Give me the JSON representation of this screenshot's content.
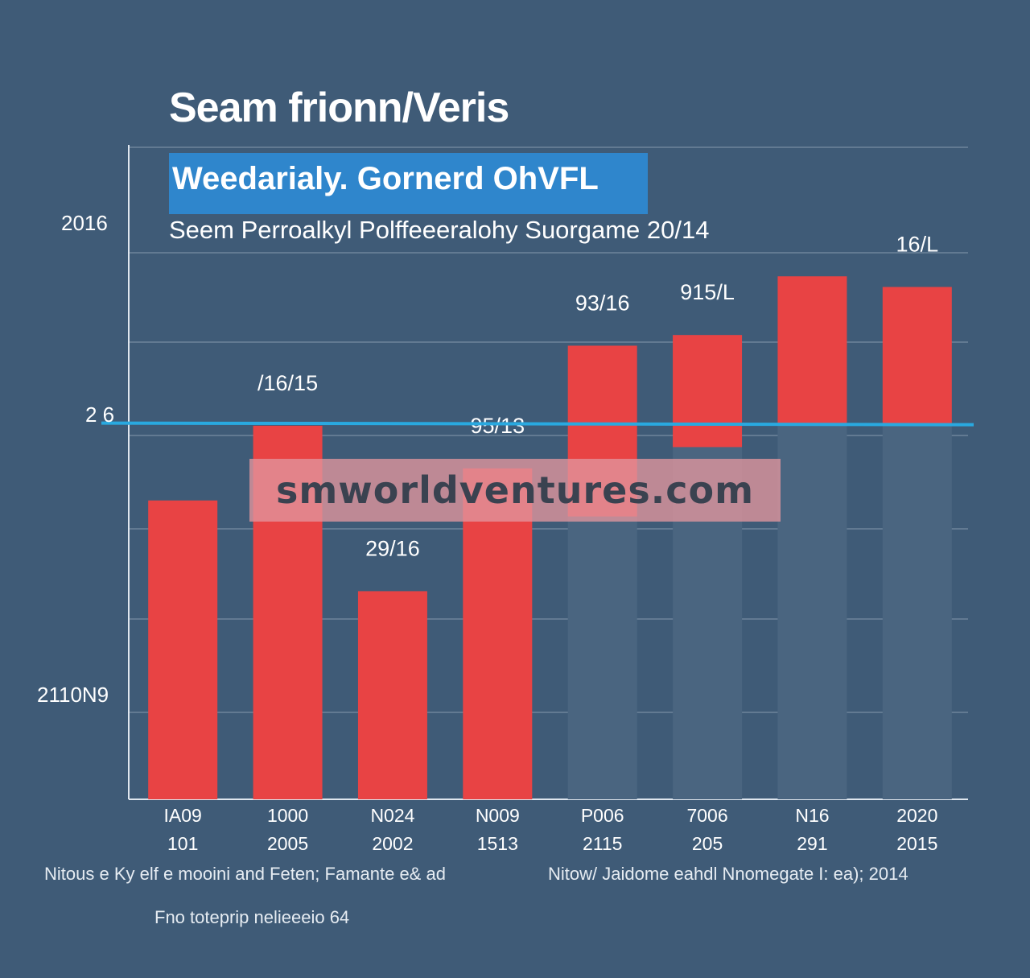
{
  "chart_data": {
    "type": "bar",
    "title": "Seam frionn/Veris",
    "subtitle": "Weedarialy. Gornerd OhVFL",
    "caption": "Seem Perroalkyl Polffeeeralohy Suorgame 20/14",
    "y_ticks": [
      "2016",
      "2 6",
      "2110N9"
    ],
    "ylim": [
      0,
      100
    ],
    "categories": [
      [
        "IA09",
        "101"
      ],
      [
        "1000",
        "2005"
      ],
      [
        "N024",
        "2002"
      ],
      [
        "N009",
        "1513"
      ],
      [
        "P006",
        "2115"
      ],
      [
        "7006",
        "205"
      ],
      [
        "N16",
        "291"
      ],
      [
        "2020",
        "2015"
      ]
    ],
    "bars": [
      {
        "low": 0,
        "high": 56
      },
      {
        "low": 0,
        "high": 70
      },
      {
        "low": 0,
        "high": 39
      },
      {
        "low": 0,
        "high": 62
      },
      {
        "low": 53,
        "high": 85
      },
      {
        "low": 66,
        "high": 87
      },
      {
        "low": 70,
        "high": 98
      },
      {
        "low": 70,
        "high": 96
      }
    ],
    "shadow_bars": [
      {
        "low": 0,
        "high": 0
      },
      {
        "low": 0,
        "high": 0
      },
      {
        "low": 0,
        "high": 0
      },
      {
        "low": 0,
        "high": 0
      },
      {
        "low": 0,
        "high": 53
      },
      {
        "low": 0,
        "high": 66
      },
      {
        "low": 0,
        "high": 70
      },
      {
        "low": 0,
        "high": 70
      }
    ],
    "data_labels": [
      "",
      "/16/15",
      "29/16",
      "95/13",
      "93/16",
      "915/L",
      "",
      "16/L"
    ],
    "reference_line": 70.5,
    "footnotes": [
      "Nitous e Ky elf e mooini and Feten; Famante e& ad",
      "Nitow/ Jaidome eahdl Nnomegate I: ea); 2014",
      "Fno toteprip nelieeeio 64"
    ],
    "watermark": "smworldventures.com",
    "colors": {
      "background": "#3f5b77",
      "bar": "#e84344",
      "shadow_bar": "#4a6580",
      "reference_line": "#29a9e0",
      "grid": "#6e859b",
      "subtitle_bg": "#2f86cc"
    }
  }
}
